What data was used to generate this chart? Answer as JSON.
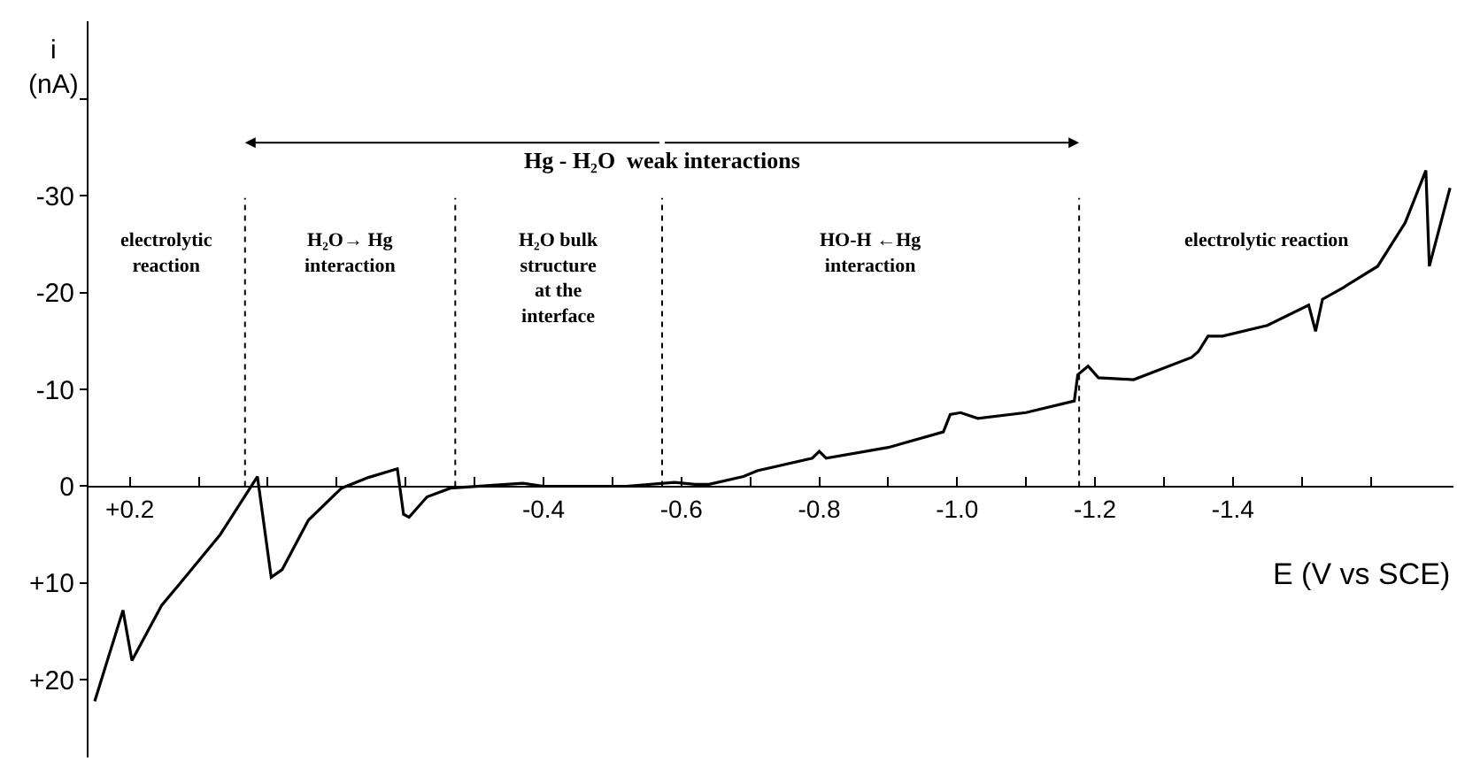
{
  "chart_data": {
    "type": "line",
    "title": "Hg - H₂O  weak interactions",
    "xlabel": "E (V vs SCE)",
    "ylabel": "i\n(nA)",
    "x": [
      0.251,
      0.21,
      0.197,
      0.154,
      0.128,
      0.069,
      0.015,
      -0.005,
      -0.021,
      -0.059,
      -0.107,
      -0.146,
      -0.188,
      -0.197,
      -0.205,
      -0.231,
      -0.265,
      -0.37,
      -0.4,
      -0.52,
      -0.59,
      -0.62,
      -0.64,
      -0.69,
      -0.71,
      -0.79,
      -0.8,
      -0.81,
      -0.9,
      -0.98,
      -0.99,
      -1.005,
      -1.03,
      -1.1,
      -1.17,
      -1.175,
      -1.19,
      -1.205,
      -1.256,
      -1.34,
      -1.35,
      -1.364,
      -1.385,
      -1.45,
      -1.51,
      -1.52,
      -1.53,
      -1.56,
      -1.61,
      -1.65,
      -1.68,
      -1.685,
      -1.715
    ],
    "series": [
      {
        "color": "#000000",
        "values": [
          22.2,
          12.8,
          18.0,
          12.3,
          10.1,
          5.0,
          -1.0,
          9.4,
          8.6,
          3.5,
          0.2,
          -0.9,
          -1.8,
          2.9,
          3.2,
          1.1,
          0.2,
          -0.3,
          0,
          0,
          -0.4,
          -0.2,
          -0.2,
          -1.0,
          -1.6,
          -2.9,
          -3.6,
          -2.9,
          -4.0,
          -5.6,
          -7.4,
          -7.6,
          -7.0,
          -7.6,
          -8.8,
          -11.5,
          -12.4,
          -11.2,
          -11.0,
          -13.3,
          -13.9,
          -15.5,
          -15.5,
          -16.6,
          -18.7,
          -16.0,
          -19.3,
          -20.5,
          -22.7,
          -27.2,
          -32.6,
          -22.7,
          -30.8
        ]
      }
    ],
    "xlim": [
      0.26,
      -1.72
    ],
    "ylim": [
      28,
      -48
    ],
    "xticks": [
      {
        "value": 0.2,
        "label": "+0.2"
      },
      {
        "value": 0.1,
        "label": null
      },
      {
        "value": 0,
        "label": null
      },
      {
        "value": -0.1,
        "label": null
      },
      {
        "value": -0.2,
        "label": null
      },
      {
        "value": -0.3,
        "label": null
      },
      {
        "value": -0.4,
        "label": "-0.4"
      },
      {
        "value": -0.5,
        "label": null
      },
      {
        "value": -0.6,
        "label": "-0.6"
      },
      {
        "value": -0.7,
        "label": null
      },
      {
        "value": -0.8,
        "label": "-0.8"
      },
      {
        "value": -0.9,
        "label": null
      },
      {
        "value": -1.0,
        "label": "-1.0"
      },
      {
        "value": -1.1,
        "label": null
      },
      {
        "value": -1.2,
        "label": "-1.2"
      },
      {
        "value": -1.3,
        "label": null
      },
      {
        "value": -1.4,
        "label": "-1.4"
      },
      {
        "value": -1.5,
        "label": null
      },
      {
        "value": -1.6,
        "label": null
      }
    ],
    "yticks": [
      {
        "value": -40,
        "label": null
      },
      -30,
      -20,
      -10,
      0,
      {
        "value": 10,
        "label": "+10"
      },
      {
        "value": 20,
        "label": "+20"
      }
    ],
    "ref_lines": [
      {
        "axis": "x",
        "value": 0.033,
        "line_style": "dotted"
      },
      {
        "axis": "x",
        "value": -0.272,
        "line_style": "dotted"
      },
      {
        "axis": "x",
        "value": -0.572,
        "line_style": "dotted"
      },
      {
        "axis": "x",
        "value": -1.177,
        "line_style": "dotted"
      }
    ],
    "annotations": [
      "electrolytic\nreaction",
      "H₂O→ Hg\ninteraction",
      "H₂O bulk\nstructure\nat the\ninterface",
      "HO-H ←Hg\ninteraction",
      "electrolytic reaction"
    ],
    "marker": "none",
    "line_style": "solid"
  }
}
